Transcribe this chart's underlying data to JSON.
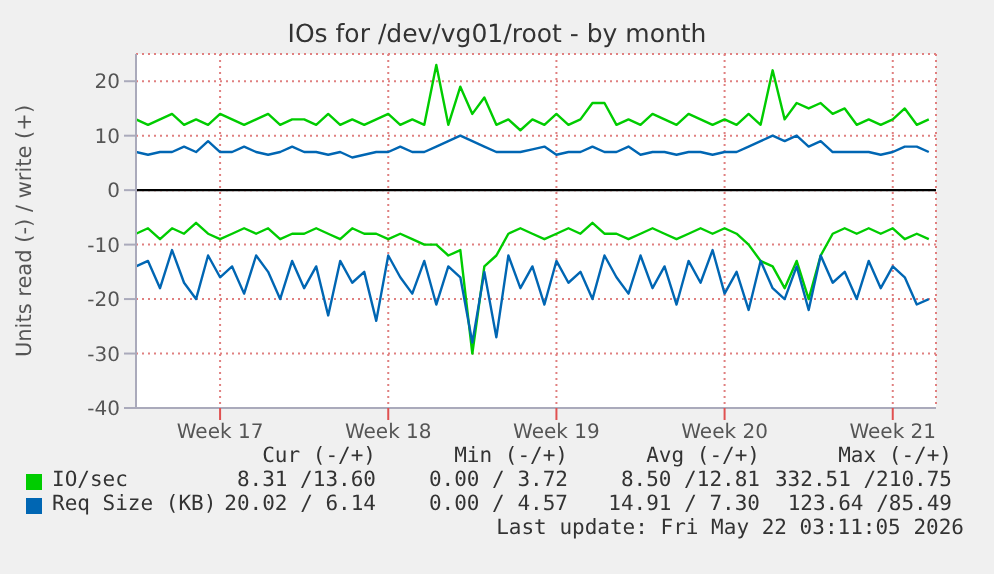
{
  "chart_data": {
    "type": "line",
    "title": "IOs for /dev/vg01/root - by month",
    "ylabel": "Units read (-) / write (+)",
    "categories": [
      null,
      null,
      null,
      null,
      null,
      null,
      null,
      "Week 17",
      null,
      null,
      null,
      null,
      null,
      null,
      null,
      null,
      null,
      null,
      null,
      null,
      null,
      "Week 18",
      null,
      null,
      null,
      null,
      null,
      null,
      null,
      null,
      null,
      null,
      null,
      null,
      null,
      "Week 19",
      null,
      null,
      null,
      null,
      null,
      null,
      null,
      null,
      null,
      null,
      null,
      null,
      null,
      "Week 20",
      null,
      null,
      null,
      null,
      null,
      null,
      null,
      null,
      null,
      null,
      null,
      null,
      null,
      "Week 21",
      null,
      null,
      null
    ],
    "series": [
      {
        "name": "IO/sec",
        "color": "#00cc00",
        "values": [
          13,
          12,
          13,
          14,
          12,
          13,
          12,
          14,
          13,
          12,
          13,
          14,
          12,
          13,
          13,
          12,
          14,
          12,
          13,
          12,
          13,
          14,
          12,
          13,
          12,
          23,
          12,
          19,
          14,
          17,
          12,
          13,
          11,
          13,
          12,
          14,
          12,
          13,
          16,
          16,
          12,
          13,
          12,
          14,
          13,
          12,
          14,
          13,
          12,
          13,
          12,
          14,
          12,
          22,
          13,
          16,
          15,
          16,
          14,
          15,
          12,
          13,
          12,
          13,
          15,
          12,
          13
        ]
      },
      {
        "color": "#00cc00",
        "values": [
          -8,
          -7,
          -9,
          -7,
          -8,
          -6,
          -8,
          -9,
          -8,
          -7,
          -8,
          -7,
          -9,
          -8,
          -8,
          -7,
          -8,
          -9,
          -7,
          -8,
          -8,
          -9,
          -8,
          -9,
          -10,
          -10,
          -12,
          -11,
          -30,
          -14,
          -12,
          -8,
          -7,
          -8,
          -9,
          -8,
          -7,
          -8,
          -6,
          -8,
          -8,
          -9,
          -8,
          -7,
          -8,
          -9,
          -8,
          -7,
          -8,
          -7,
          -8,
          -10,
          -13,
          -14,
          -18,
          -13,
          -20,
          -12,
          -8,
          -7,
          -8,
          -7,
          -8,
          -7,
          -9,
          -8,
          -9
        ]
      },
      {
        "name": "Req Size (KB)",
        "color": "#0066b3",
        "values": [
          7,
          6.5,
          7,
          7,
          8,
          7,
          9,
          7,
          7,
          8,
          7,
          6.5,
          7,
          8,
          7,
          7,
          6.5,
          7,
          6,
          6.5,
          7,
          7,
          8,
          7,
          7,
          8,
          9,
          10,
          9,
          8,
          7,
          7,
          7,
          7.5,
          8,
          6.5,
          7,
          7,
          8,
          7,
          7,
          8,
          6.5,
          7,
          7,
          6.5,
          7,
          7,
          6.5,
          7,
          7,
          8,
          9,
          10,
          9,
          10,
          8,
          9,
          7,
          7,
          7,
          7,
          6.5,
          7,
          8,
          8,
          7
        ]
      },
      {
        "color": "#0066b3",
        "values": [
          -14,
          -13,
          -18,
          -11,
          -17,
          -20,
          -12,
          -16,
          -14,
          -19,
          -12,
          -15,
          -20,
          -13,
          -18,
          -14,
          -23,
          -13,
          -17,
          -15,
          -24,
          -12,
          -16,
          -19,
          -13,
          -21,
          -14,
          -16,
          -28,
          -15,
          -27,
          -12,
          -18,
          -14,
          -21,
          -13,
          -17,
          -15,
          -20,
          -12,
          -16,
          -19,
          -12,
          -18,
          -14,
          -21,
          -13,
          -17,
          -11,
          -19,
          -15,
          -22,
          -13,
          -18,
          -20,
          -14,
          -22,
          -12,
          -17,
          -15,
          -20,
          -13,
          -18,
          -14,
          -16,
          -21,
          -20
        ]
      }
    ],
    "ylim": [
      -40,
      25
    ],
    "yticks": [
      -40,
      -30,
      -20,
      -10,
      0,
      10,
      20
    ],
    "ref_lines": [
      {
        "axis": "y",
        "value": 0,
        "color": "#000000"
      }
    ],
    "grid": true,
    "legend": "bottom",
    "marker": "none",
    "line_style": "solid",
    "annotations": [
      "Cur (-/+)",
      "Min (-/+)",
      "Avg (-/+)",
      "Max (-/+)",
      "8.31 /13.60",
      "0.00 / 3.72",
      "8.50 /12.81",
      "332.51 /210.75",
      "20.02 / 6.14",
      "0.00 / 4.57",
      "14.91 / 7.30",
      "123.64 /85.49",
      "Last update: Fri May 22 03:11:05 2026"
    ]
  }
}
